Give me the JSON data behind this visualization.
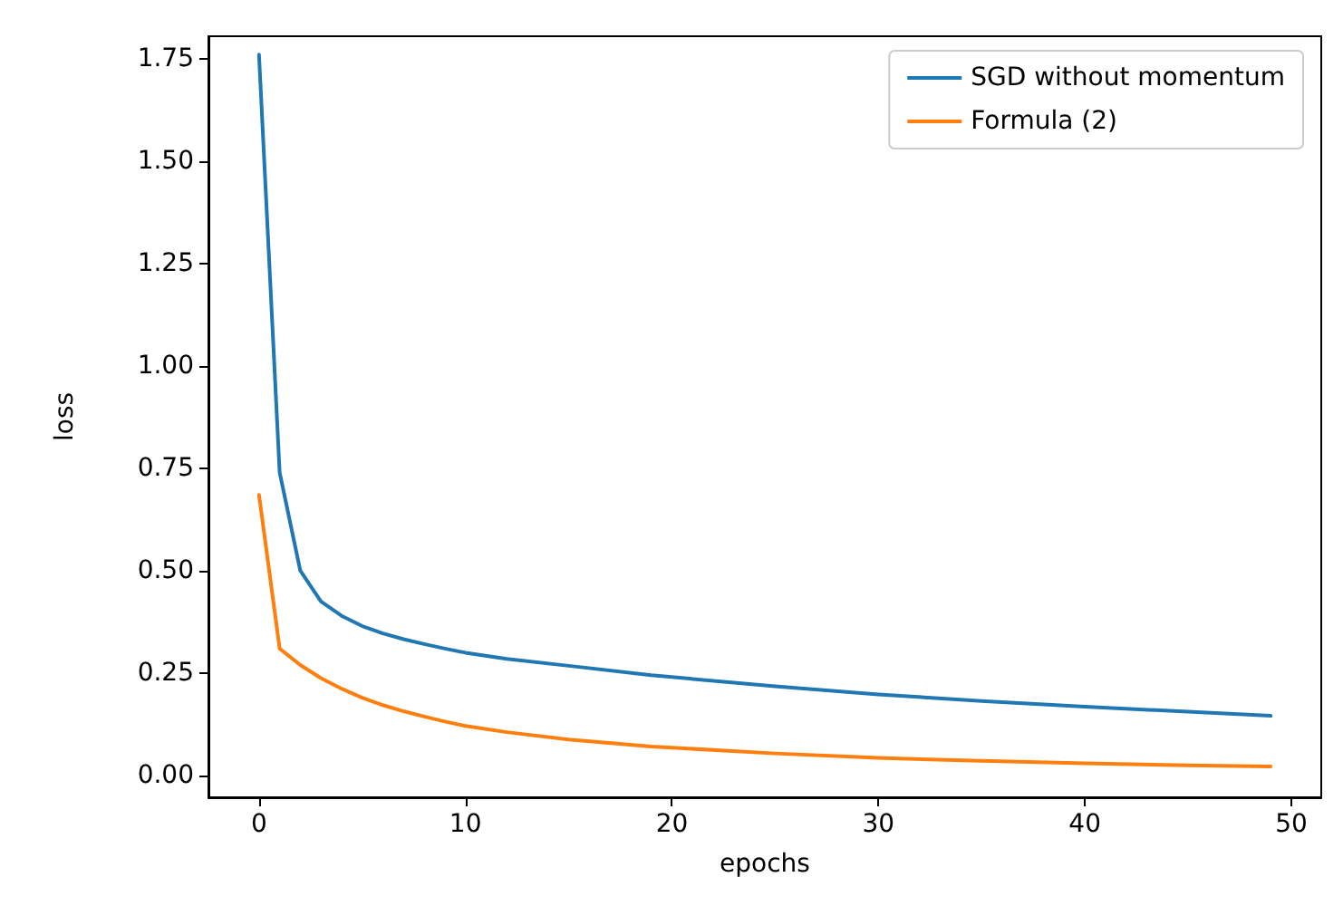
{
  "chart_data": {
    "type": "line",
    "xlabel": "epochs",
    "ylabel": "loss",
    "xlim": [
      -2.45,
      51.45
    ],
    "xticks": [
      0,
      10,
      20,
      30,
      40,
      50
    ],
    "ylim": [
      -0.053,
      1.805
    ],
    "yticks": [
      {
        "value": 0,
        "label": "0.00"
      },
      {
        "value": 0.25,
        "label": "0.25"
      },
      {
        "value": 0.5,
        "label": "0.50"
      },
      {
        "value": 0.75,
        "label": "0.75"
      },
      {
        "value": 1,
        "label": "1.00"
      },
      {
        "value": 1.25,
        "label": "1.25"
      },
      {
        "value": 1.5,
        "label": "1.50"
      },
      {
        "value": 1.75,
        "label": "1.75"
      }
    ],
    "x": [
      0,
      1,
      2,
      3,
      4,
      5,
      6,
      7,
      8,
      9,
      10,
      12,
      15,
      19,
      25,
      30,
      35,
      40,
      45,
      49
    ],
    "series": [
      {
        "name": "SGD without momentum",
        "color": "#1f77b4",
        "values": [
          1.76,
          0.74,
          0.5,
          0.425,
          0.39,
          0.365,
          0.347,
          0.333,
          0.321,
          0.31,
          0.3,
          0.285,
          0.268,
          0.245,
          0.218,
          0.198,
          0.182,
          0.168,
          0.156,
          0.146
        ]
      },
      {
        "name": "Formula (2)",
        "color": "#ff7f0e",
        "values": [
          0.685,
          0.31,
          0.27,
          0.238,
          0.212,
          0.19,
          0.172,
          0.157,
          0.144,
          0.132,
          0.121,
          0.106,
          0.088,
          0.071,
          0.054,
          0.043,
          0.036,
          0.03,
          0.025,
          0.022
        ]
      }
    ],
    "legend": "top right",
    "grid": false,
    "marker": "none",
    "line_style": "solid"
  }
}
